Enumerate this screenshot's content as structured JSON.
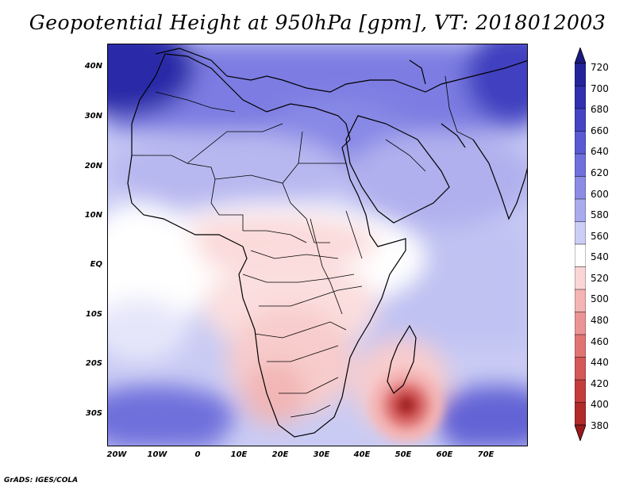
{
  "title": "Geopotential Height at 950hPa [gpm], VT: 2018012003",
  "footer": "GrADS: IGES/COLA",
  "axes": {
    "lat_labels": [
      "40N",
      "30N",
      "20N",
      "10N",
      "EQ",
      "10S",
      "20S",
      "30S"
    ],
    "lon_labels": [
      "20W",
      "10W",
      "0",
      "10E",
      "20E",
      "30E",
      "40E",
      "50E",
      "60E",
      "70E"
    ]
  },
  "colorbar": {
    "levels": [
      "720",
      "700",
      "680",
      "660",
      "640",
      "620",
      "600",
      "580",
      "560",
      "540",
      "520",
      "500",
      "480",
      "460",
      "440",
      "420",
      "400",
      "380"
    ],
    "colors": [
      "#1a1a80",
      "#24249a",
      "#3030b0",
      "#4444c4",
      "#5a5ad2",
      "#7070dc",
      "#8c8ce6",
      "#aaaaee",
      "#cccef6",
      "#ffffff",
      "#fbd6d6",
      "#f4b4b4",
      "#ec9494",
      "#e07474",
      "#d45858",
      "#c43c3c",
      "#b02a2a",
      "#9a1a1a"
    ]
  },
  "field": {
    "variable": "Geopotential Height",
    "level_hpa": 950,
    "units": "gpm",
    "valid_time": "2018012003",
    "low_center": {
      "lat": -28,
      "lon": 50,
      "value_approx": 380
    }
  }
}
